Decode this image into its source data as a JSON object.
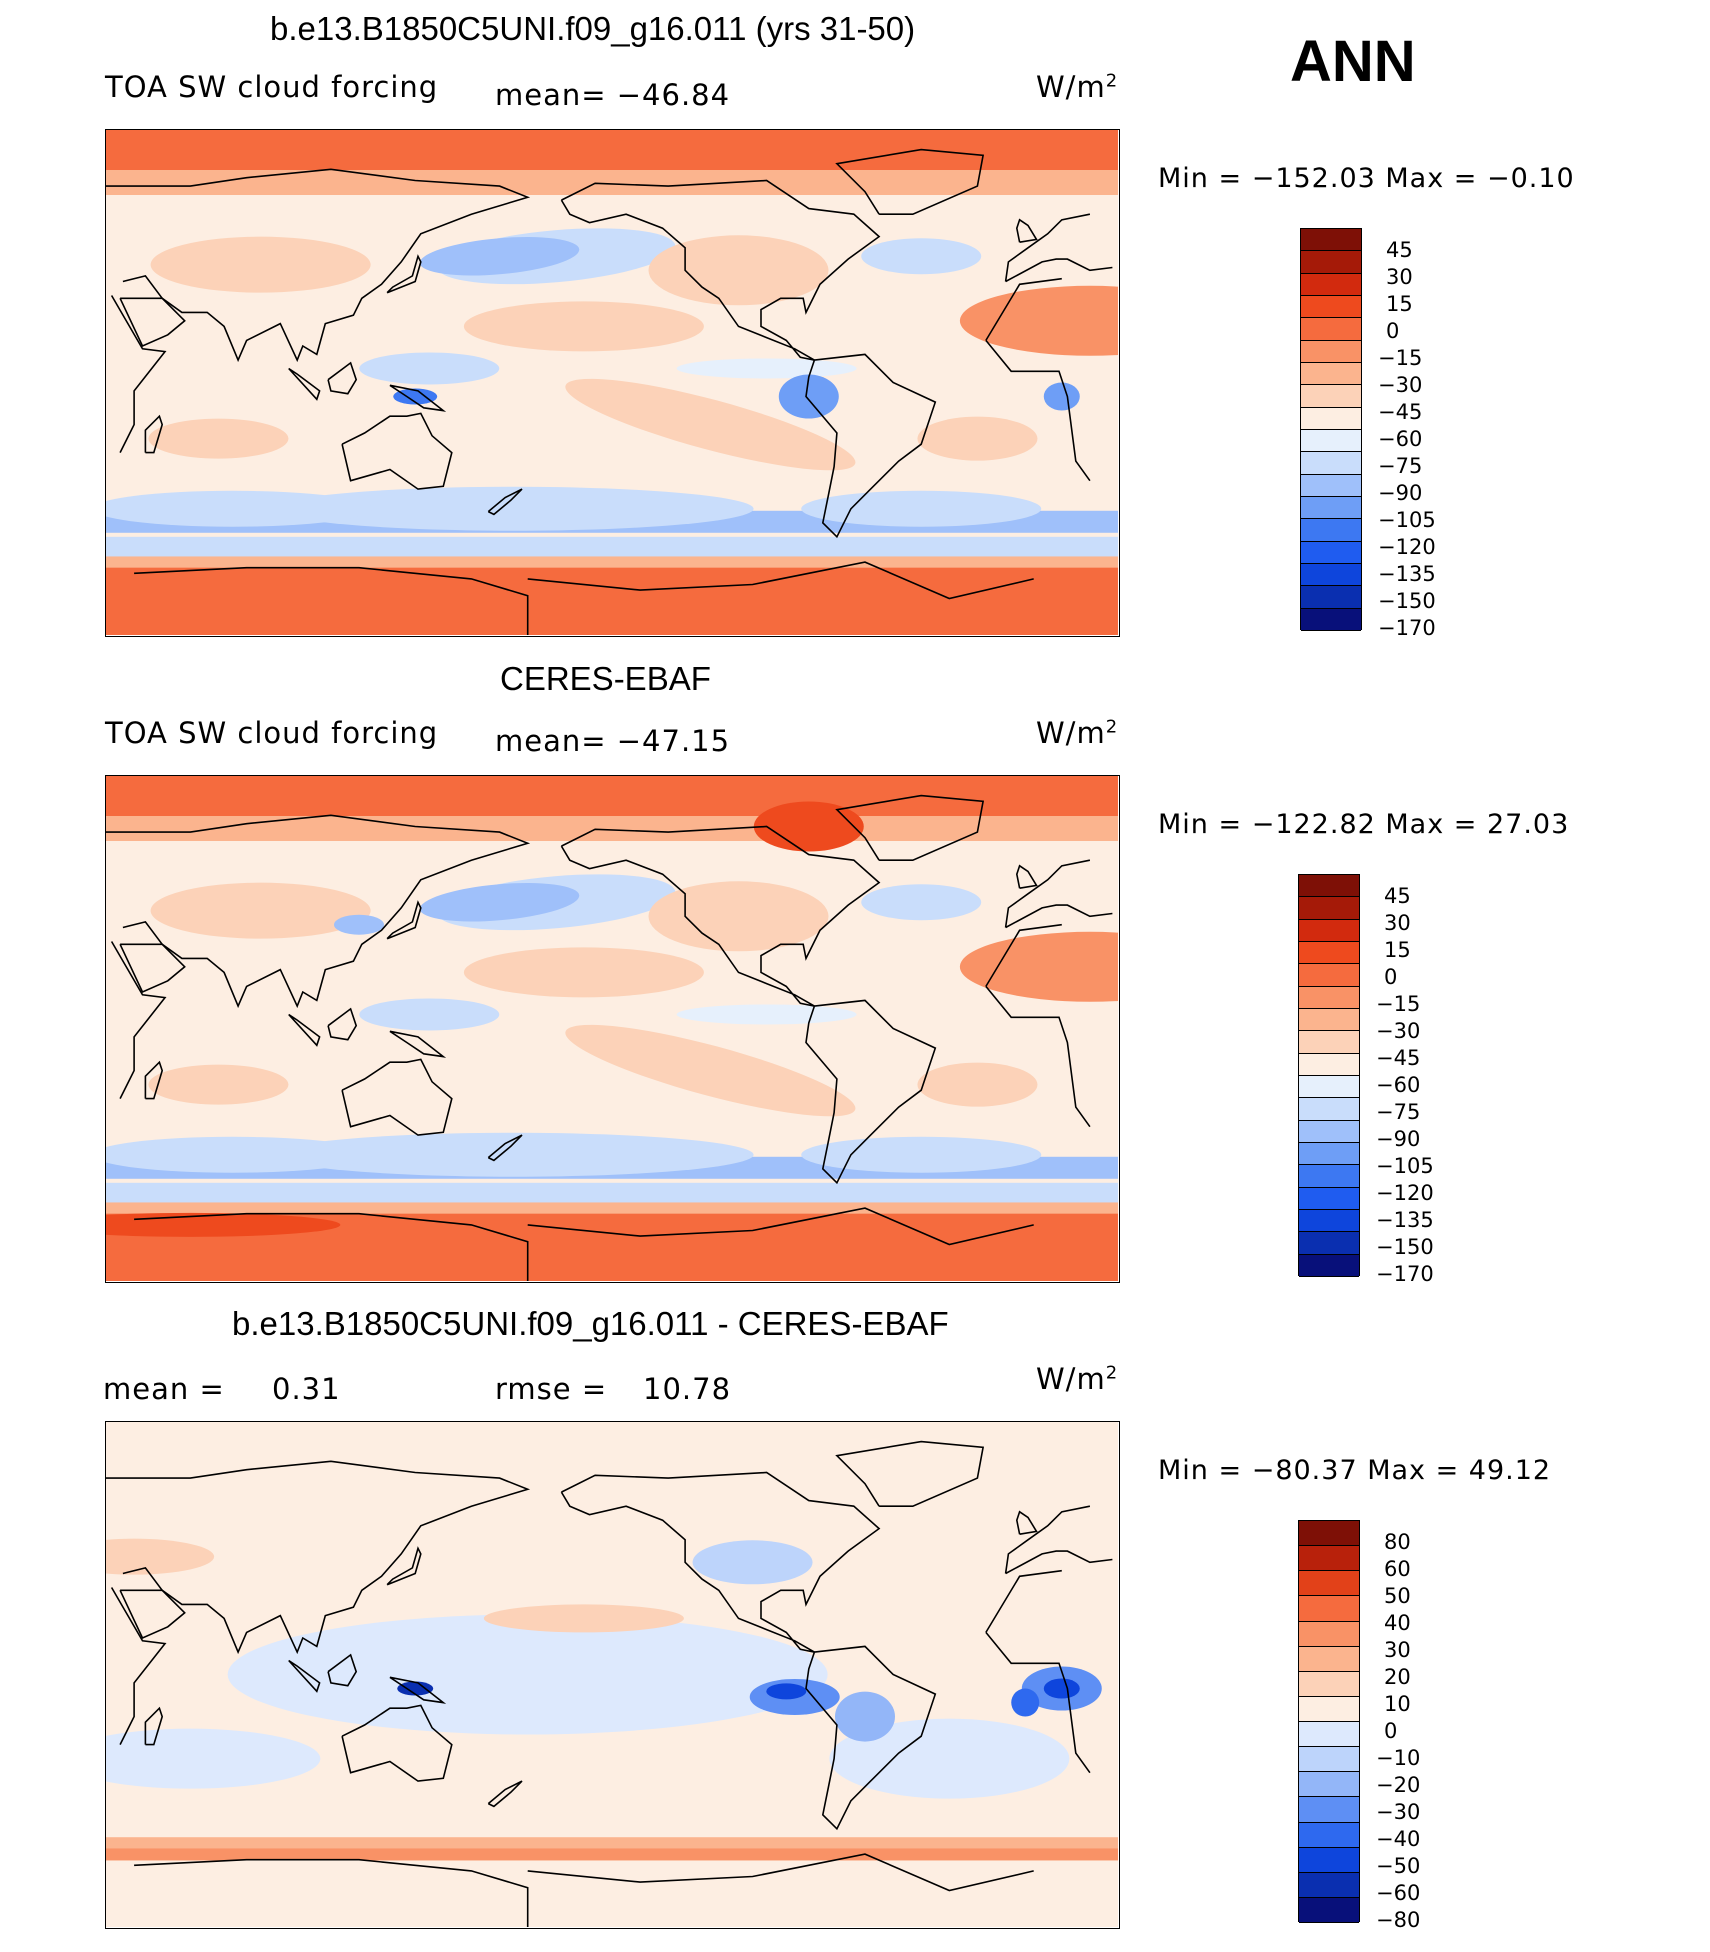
{
  "season": "ANN",
  "palette_abs": [
    "#08107a",
    "#0a2fb0",
    "#0e45dc",
    "#1f5cf0",
    "#3d78f2",
    "#6e9ef6",
    "#9fc0fa",
    "#c9ddfb",
    "#e6f0fc",
    "#fdeee2",
    "#fcd2b8",
    "#fbb48e",
    "#f99266",
    "#f56b3e",
    "#ee4a1e",
    "#d22a0e",
    "#a51a08",
    "#7e1006"
  ],
  "palette_diff": [
    "#08107a",
    "#0a2fb0",
    "#0e45dc",
    "#2e69ef",
    "#5e8ff4",
    "#93b6f8",
    "#bdd4fb",
    "#dde9fd",
    "#fdeee2",
    "#fcd2b8",
    "#fbb48e",
    "#f99266",
    "#f56b3e",
    "#e24119",
    "#b8210b",
    "#7e1006"
  ],
  "panels": [
    {
      "title": "b.e13.B1850C5UNI.f09_g16.011 (yrs 31-50)",
      "left_label": "TOA SW cloud forcing",
      "mid_label": "mean= −46.84",
      "units": "W/m",
      "units_sup": "2",
      "minmax": "Min = −152.03 Max = −0.10",
      "ticks": [
        "45",
        "30",
        "15",
        "0",
        "−15",
        "−30",
        "−45",
        "−60",
        "−75",
        "−90",
        "−105",
        "−120",
        "−135",
        "−150",
        "−170"
      ]
    },
    {
      "title": "CERES-EBAF",
      "left_label": "TOA SW cloud forcing",
      "mid_label": "mean= −47.15",
      "units": "W/m",
      "units_sup": "2",
      "minmax": "Min = −122.82 Max = 27.03",
      "ticks": [
        "45",
        "30",
        "15",
        "0",
        "−15",
        "−30",
        "−45",
        "−60",
        "−75",
        "−90",
        "−105",
        "−120",
        "−135",
        "−150",
        "−170"
      ]
    },
    {
      "title": "b.e13.B1850C5UNI.f09_g16.011 - CERES-EBAF",
      "left_label": "mean =",
      "left_value": "0.31",
      "mid_label": "rmse =",
      "mid_value": "10.78",
      "units": "W/m",
      "units_sup": "2",
      "minmax": "Min = −80.37 Max = 49.12",
      "ticks": [
        "80",
        "60",
        "50",
        "40",
        "30",
        "20",
        "10",
        "0",
        "−10",
        "−20",
        "−30",
        "−40",
        "−50",
        "−60",
        "−80"
      ]
    }
  ]
}
